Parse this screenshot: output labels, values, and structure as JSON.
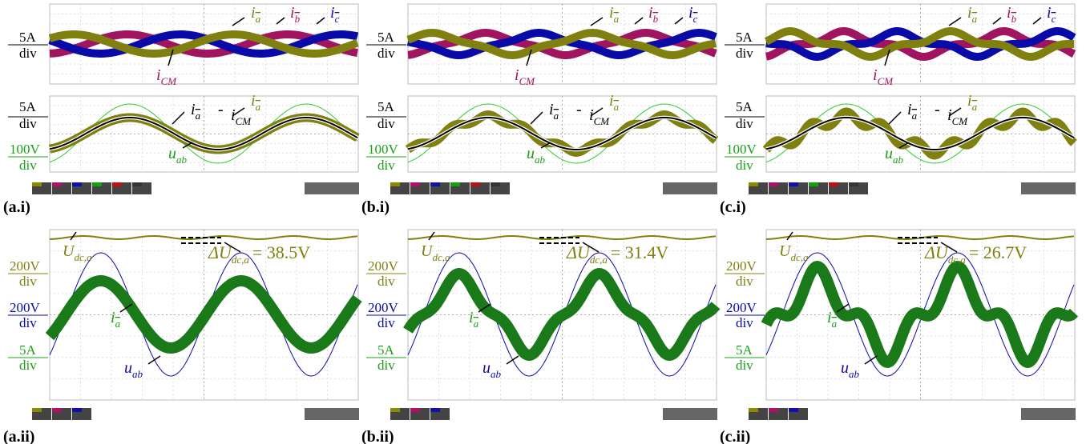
{
  "labels": {
    "ia": {
      "base": "i",
      "sub": "a"
    },
    "ib": {
      "base": "i",
      "sub": "b"
    },
    "ic": {
      "base": "i",
      "sub": "c"
    },
    "icm": {
      "base": "i",
      "sub": "CM"
    },
    "minus": "-",
    "uab": {
      "base": "u",
      "sub": "ab"
    },
    "udc": {
      "base": "U",
      "sub": "dc,a"
    },
    "delta": "ΔU"
  },
  "scales": {
    "s5a": "5A",
    "div": "div",
    "s100v": "100V",
    "s200v": "200V"
  },
  "panels": [
    {
      "label_top": "(a.i)",
      "label_bottom": "(a.ii)",
      "ripple": "= 38.5V"
    },
    {
      "label_top": "(b.i)",
      "label_bottom": "(b.ii)",
      "ripple": "= 31.4V"
    },
    {
      "label_top": "(c.i)",
      "label_bottom": "(c.ii)",
      "ripple": "= 26.7V"
    }
  ]
}
